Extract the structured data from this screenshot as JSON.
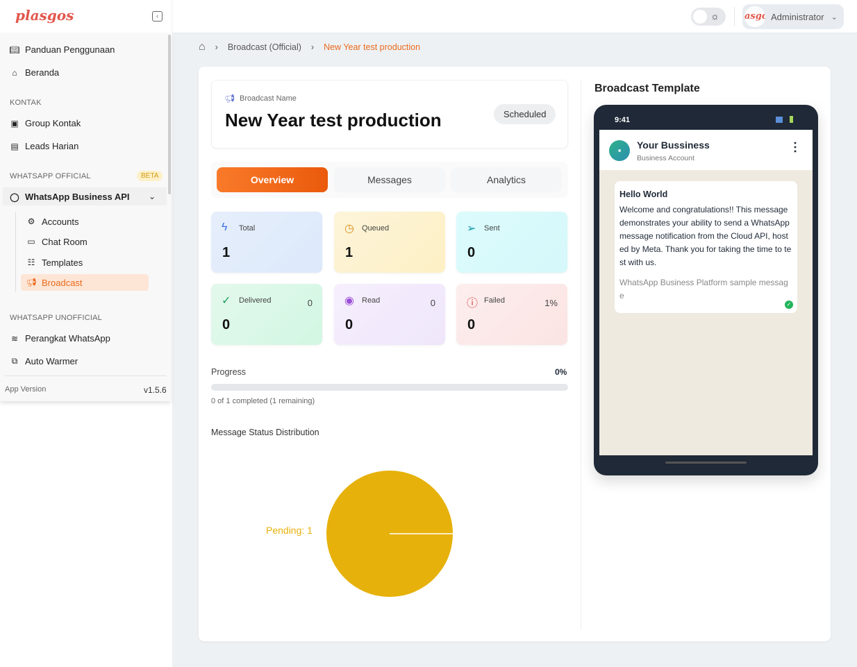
{
  "brand": {
    "logo": "plasgos"
  },
  "topbar": {
    "user": "Administrator",
    "avatar_text": "asgo"
  },
  "sidebar": {
    "top_items": [
      {
        "label": "Panduan Penggunaan"
      },
      {
        "label": "Beranda"
      }
    ],
    "kontak": {
      "title": "KONTAK",
      "items": [
        {
          "label": "Group Kontak"
        },
        {
          "label": "Leads Harian"
        }
      ]
    },
    "official": {
      "title": "WHATSAPP OFFICIAL",
      "badge": "BETA",
      "group": "WhatsApp Business API",
      "items": [
        {
          "label": "Accounts"
        },
        {
          "label": "Chat Room"
        },
        {
          "label": "Templates"
        },
        {
          "label": "Broadcast"
        }
      ]
    },
    "unofficial": {
      "title": "WHATSAPP UNOFFICIAL",
      "items": [
        {
          "label": "Perangkat WhatsApp"
        },
        {
          "label": "Auto Warmer"
        }
      ]
    },
    "version_label": "App Version",
    "version": "v1.5.6"
  },
  "breadcrumb": {
    "items": [
      "Broadcast (Official)",
      "New Year test production"
    ]
  },
  "broadcast": {
    "name_label": "Broadcast Name",
    "name": "New Year test production",
    "status": "Scheduled"
  },
  "tabs": [
    "Overview",
    "Messages",
    "Analytics"
  ],
  "stats": [
    {
      "label": "Total",
      "value": "1",
      "side": ""
    },
    {
      "label": "Queued",
      "value": "1",
      "side": ""
    },
    {
      "label": "Sent",
      "value": "0",
      "side": ""
    },
    {
      "label": "Delivered",
      "value": "0",
      "side": "0"
    },
    {
      "label": "Read",
      "value": "0",
      "side": "0"
    },
    {
      "label": "Failed",
      "value": "0",
      "side": "1%"
    }
  ],
  "progress": {
    "label": "Progress",
    "percent_text": "0%",
    "percent": 0,
    "detail": "0 of 1 completed (1 remaining)"
  },
  "chart_data": {
    "type": "pie",
    "title": "Message Status Distribution",
    "slices": [
      {
        "label": "Pending",
        "value": 1,
        "color": "#e6b10a"
      }
    ],
    "labels": [
      "Pending: 1"
    ]
  },
  "template": {
    "title": "Broadcast Template",
    "time": "9:41",
    "business": "Your Bussiness",
    "account": "Business Account",
    "msg_title": "Hello World",
    "msg_body": "Welcome and congratulations!! This message demonstrates your ability to send a WhatsApp message notification from the Cloud API, hosted by Meta. Thank you for taking the time to test with us.",
    "msg_footer": "WhatsApp Business Platform sample message"
  }
}
